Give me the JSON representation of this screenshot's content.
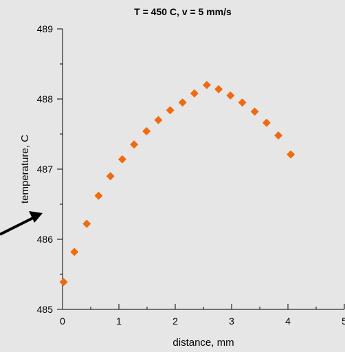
{
  "chart_data": {
    "type": "scatter",
    "title": "T = 450 C, v = 5 mm/s",
    "xlabel": "distance, mm",
    "ylabel": "temperature, C",
    "xlim": [
      0,
      5
    ],
    "ylim": [
      485,
      489
    ],
    "x_ticks": [
      "0",
      "1",
      "2",
      "3",
      "4",
      "5"
    ],
    "y_ticks": [
      "485",
      "486",
      "487",
      "488",
      "489"
    ],
    "grid": false,
    "marker": "diamond",
    "colors": {
      "marker": "#f26a10",
      "background": "#e6e6e6"
    },
    "series": [
      {
        "x": [
          0.02,
          0.21,
          0.43,
          0.64,
          0.85,
          1.06,
          1.27,
          1.49,
          1.7,
          1.91,
          2.13,
          2.34,
          2.56,
          2.77,
          2.98,
          3.19,
          3.41,
          3.62,
          3.83,
          4.05
        ],
        "y": [
          485.39,
          485.82,
          486.22,
          486.62,
          486.9,
          487.14,
          487.35,
          487.54,
          487.7,
          487.84,
          487.95,
          488.08,
          488.2,
          488.14,
          488.05,
          487.95,
          487.82,
          487.66,
          487.48,
          487.21
        ]
      }
    ]
  }
}
